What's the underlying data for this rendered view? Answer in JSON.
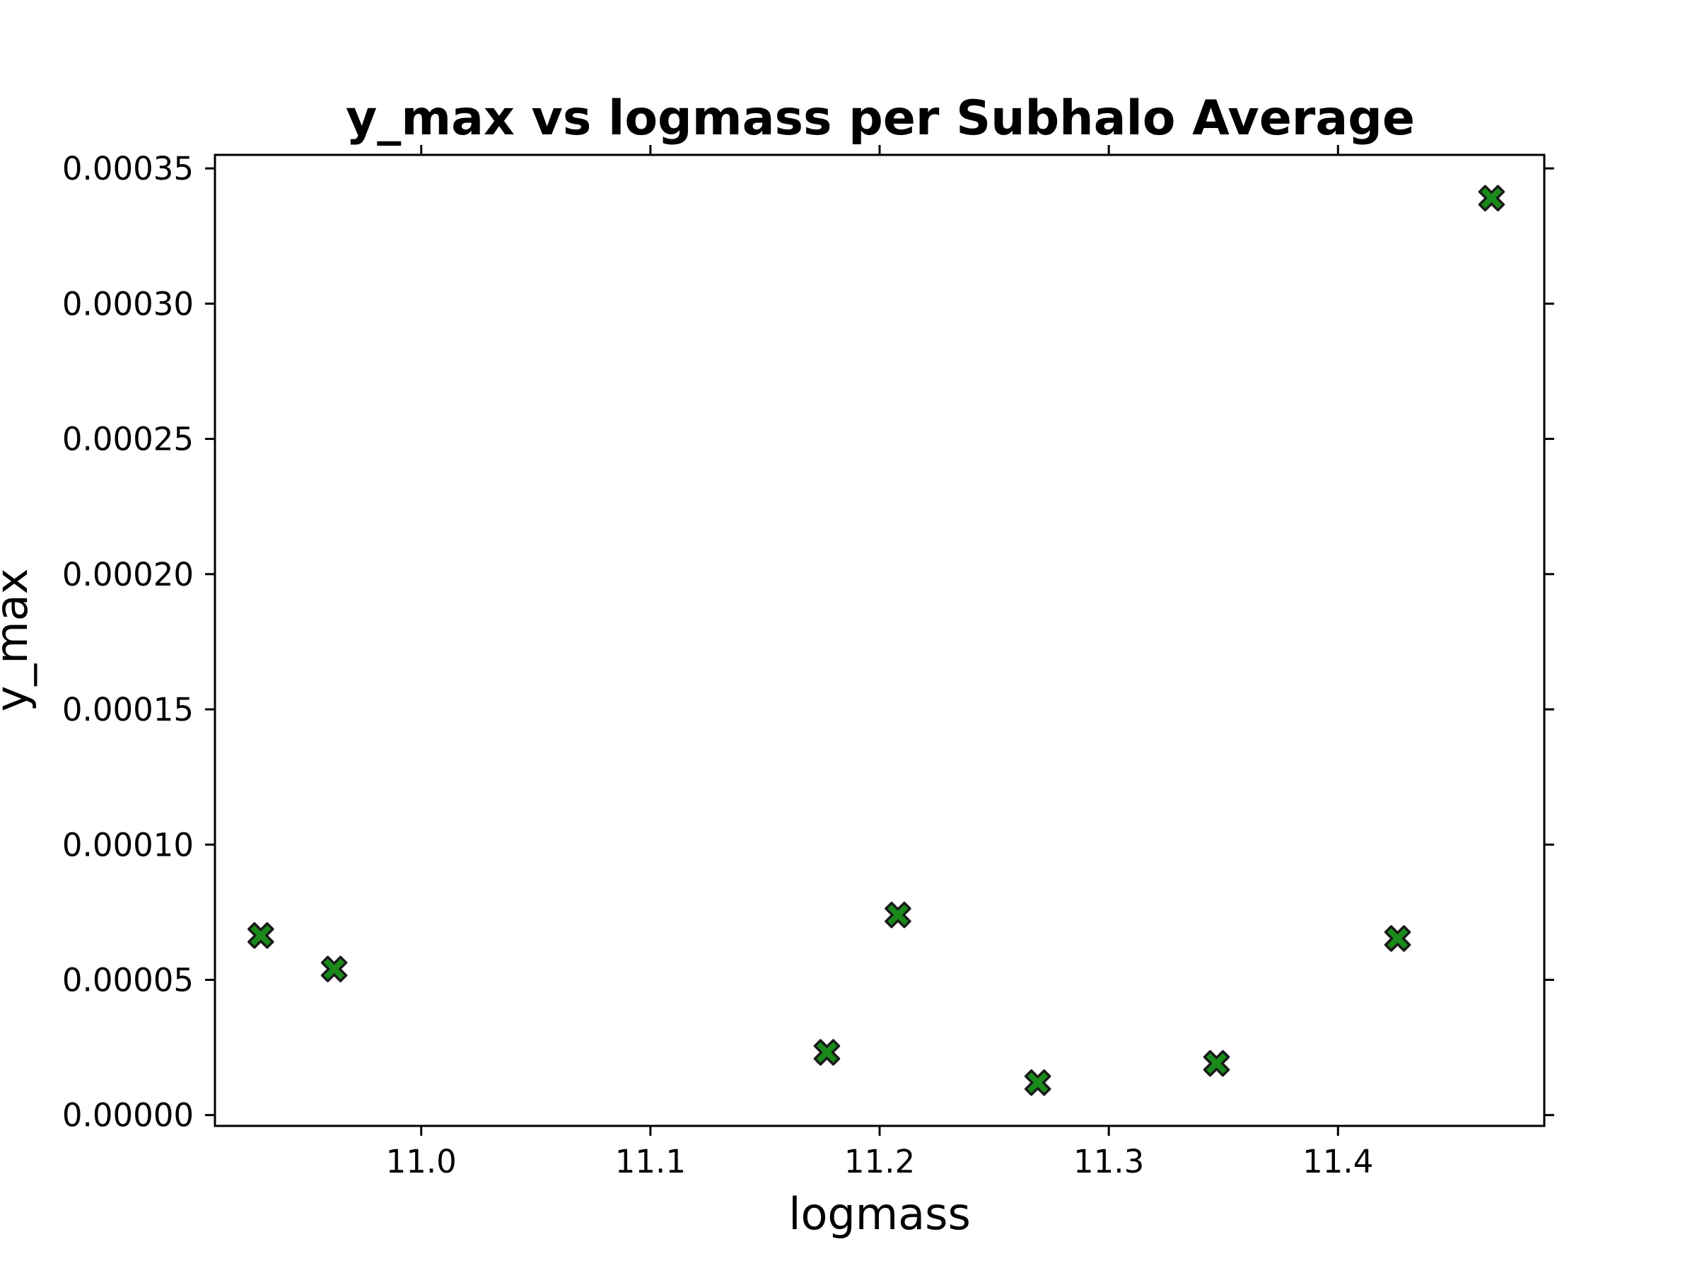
{
  "chart_data": {
    "type": "scatter",
    "title": "y_max vs logmass per Subhalo Average",
    "xlabel": "logmass",
    "ylabel": "y_max",
    "xlim": [
      10.91,
      11.49
    ],
    "ylim": [
      -4e-06,
      0.000355
    ],
    "xticks": [
      11.0,
      11.1,
      11.2,
      11.3,
      11.4
    ],
    "xtick_labels": [
      "11.0",
      "11.1",
      "11.2",
      "11.3",
      "11.4"
    ],
    "yticks": [
      0.0,
      5e-05,
      0.0001,
      0.00015,
      0.0002,
      0.00025,
      0.0003,
      0.00035
    ],
    "ytick_labels": [
      "0.00000",
      "0.00005",
      "0.00010",
      "0.00015",
      "0.00020",
      "0.00025",
      "0.00030",
      "0.00035"
    ],
    "marker": "X",
    "marker_color": "#1a8a1a",
    "marker_edge_color": "#1a1a1a",
    "points": [
      {
        "x": 10.93,
        "y": 6.64e-05
      },
      {
        "x": 10.962,
        "y": 5.4e-05
      },
      {
        "x": 11.177,
        "y": 2.32e-05
      },
      {
        "x": 11.208,
        "y": 7.4e-05
      },
      {
        "x": 11.269,
        "y": 1.2e-05
      },
      {
        "x": 11.347,
        "y": 1.91e-05
      },
      {
        "x": 11.426,
        "y": 6.53e-05
      },
      {
        "x": 11.467,
        "y": 0.000339
      }
    ]
  }
}
